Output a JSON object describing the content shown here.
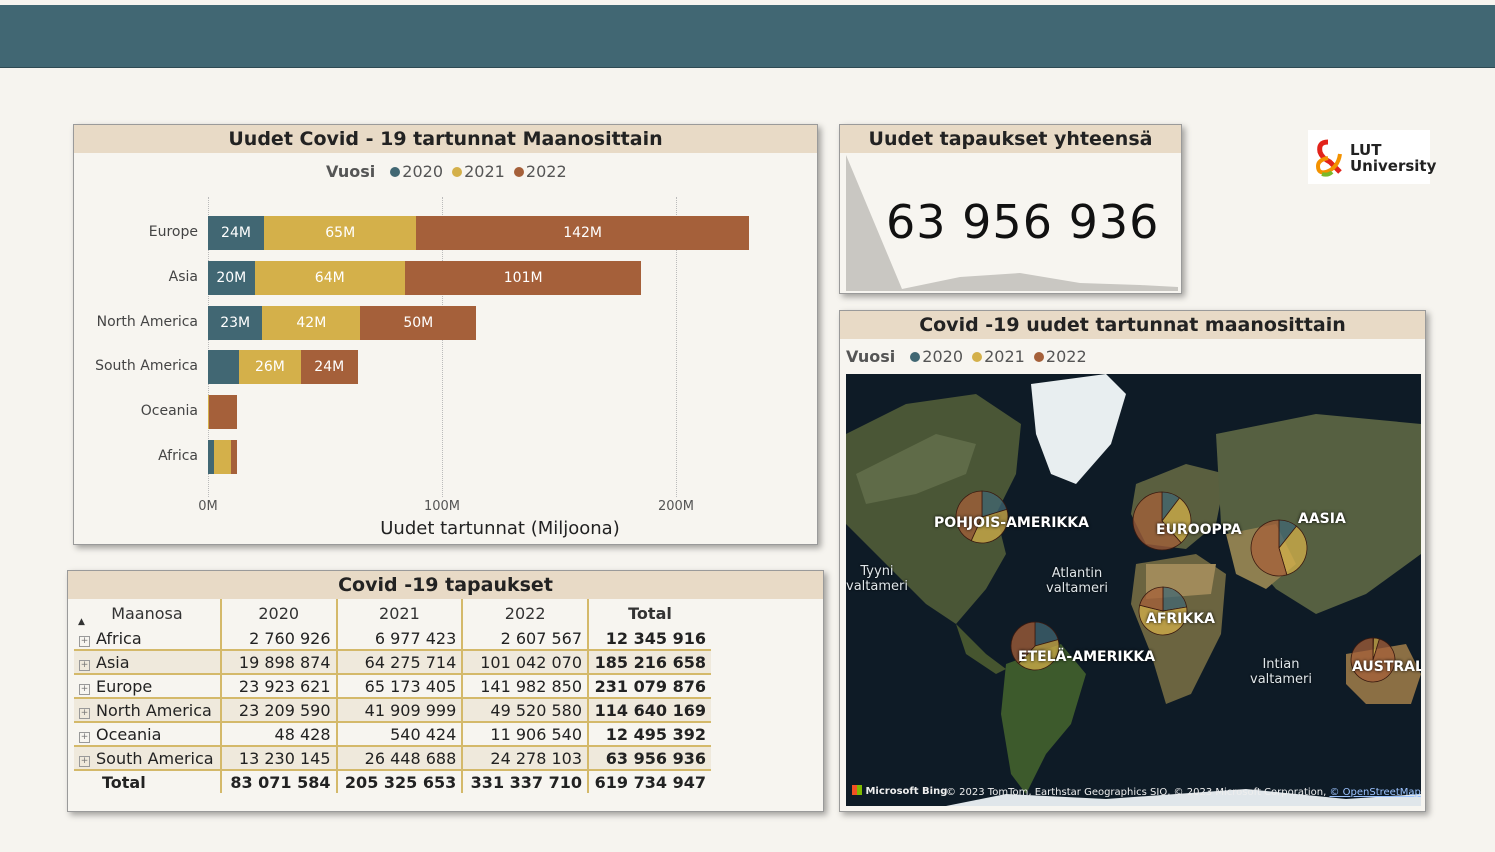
{
  "colors": {
    "y2020": "#416773",
    "y2021": "#d4b04a",
    "y2022": "#a5603a",
    "header": "#416773",
    "title_bg": "#e8dac6"
  },
  "bar_panel": {
    "title": "Uudet Covid - 19 tartunnat Maanosittain",
    "legend_title": "Vuosi",
    "legend": [
      "2020",
      "2021",
      "2022"
    ],
    "xlabel": "Uudet tartunnat (Miljoona)",
    "ticks": [
      "0M",
      "100M",
      "200M"
    ]
  },
  "chart_data": {
    "type": "bar",
    "orientation": "horizontal-stacked",
    "title": "Uudet Covid - 19 tartunnat Maanosittain",
    "xlabel": "Uudet tartunnat (Miljoona)",
    "xlim": [
      0,
      250000000
    ],
    "categories": [
      "Europe",
      "Asia",
      "North America",
      "South America",
      "Oceania",
      "Africa"
    ],
    "series": [
      {
        "name": "2020",
        "values": [
          23923621,
          19898874,
          23209590,
          13230145,
          48428,
          2760926
        ],
        "labels": [
          "24M",
          "20M",
          "23M",
          "",
          "",
          ""
        ]
      },
      {
        "name": "2021",
        "values": [
          65173405,
          64275714,
          41909999,
          26448688,
          540424,
          6977423
        ],
        "labels": [
          "65M",
          "64M",
          "42M",
          "26M",
          "",
          ""
        ]
      },
      {
        "name": "2022",
        "values": [
          141982850,
          101042070,
          49520580,
          24278103,
          11906540,
          2607567
        ],
        "labels": [
          "142M",
          "101M",
          "50M",
          "24M",
          "",
          ""
        ]
      }
    ],
    "grid": true,
    "legend_position": "top"
  },
  "kpi": {
    "title": "Uudet tapaukset yhteensä",
    "value": "63 956 936"
  },
  "logo": {
    "text_line1": "LUT",
    "text_line2": "University"
  },
  "table": {
    "title": "Covid -19 tapaukset",
    "headers": [
      "Maanosa",
      "2020",
      "2021",
      "2022",
      "Total"
    ],
    "rows": [
      [
        "Africa",
        "2 760 926",
        "6 977 423",
        "2 607 567",
        "12 345 916"
      ],
      [
        "Asia",
        "19 898 874",
        "64 275 714",
        "101 042 070",
        "185 216 658"
      ],
      [
        "Europe",
        "23 923 621",
        "65 173 405",
        "141 982 850",
        "231 079 876"
      ],
      [
        "North America",
        "23 209 590",
        "41 909 999",
        "49 520 580",
        "114 640 169"
      ],
      [
        "Oceania",
        "48 428",
        "540 424",
        "11 906 540",
        "12 495 392"
      ],
      [
        "South America",
        "13 230 145",
        "26 448 688",
        "24 278 103",
        "63 956 936"
      ]
    ],
    "total": [
      "Total",
      "83 071 584",
      "205 325 653",
      "331 337 710",
      "619 734 947"
    ]
  },
  "map_panel": {
    "title": "Covid -19 uudet tartunnat maanosittain",
    "legend_title": "Vuosi",
    "legend": [
      "2020",
      "2021",
      "2022"
    ],
    "region_labels": [
      "POHJOIS-AMERIKKA",
      "EUROOPPA",
      "AASIA",
      "AFRIKKA",
      "ETELÄ-AMERIKKA",
      "AUSTRALIA"
    ],
    "ocean_labels": [
      "Tyyni\nvaltameri",
      "Atlantin\nvaltameri",
      "Intian\nvaltameri"
    ],
    "credit_brand": "Microsoft Bing",
    "credit_text": "© 2023 TomTom, Earthstar Geographics SIO, © 2023 Microsoft Corporation,",
    "credit_link": "© OpenStreetMap"
  }
}
